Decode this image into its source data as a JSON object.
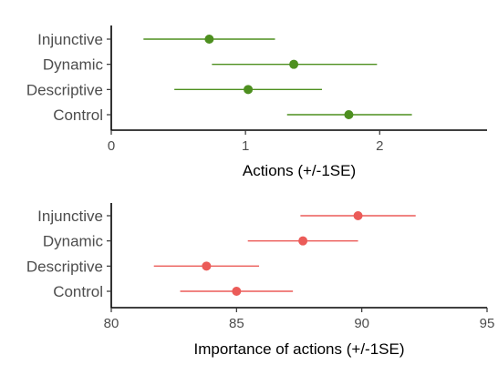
{
  "chart_data": [
    {
      "type": "scatter",
      "subtype": "point-range",
      "title": "",
      "xlabel": "Actions (+/-1SE)",
      "ylabel": "",
      "xlim": [
        0,
        2.8
      ],
      "xticks": [
        0,
        1,
        2
      ],
      "xtick_labels": [
        "0",
        "1",
        "2"
      ],
      "color": "#4d8f1f",
      "categories": [
        "Injunctive",
        "Dynamic",
        "Descriptive",
        "Control"
      ],
      "points": [
        {
          "label": "Injunctive",
          "value": 0.73,
          "low": 0.24,
          "high": 1.22
        },
        {
          "label": "Dynamic",
          "value": 1.36,
          "low": 0.75,
          "high": 1.98
        },
        {
          "label": "Descriptive",
          "value": 1.02,
          "low": 0.47,
          "high": 1.57
        },
        {
          "label": "Control",
          "value": 1.77,
          "low": 1.31,
          "high": 2.24
        }
      ],
      "grid": false
    },
    {
      "type": "scatter",
      "subtype": "point-range",
      "title": "",
      "xlabel": "Importance of actions (+/-1SE)",
      "ylabel": "",
      "xlim": [
        80,
        95
      ],
      "xticks": [
        80,
        85,
        90,
        95
      ],
      "xtick_labels": [
        "80",
        "85",
        "90",
        "95"
      ],
      "color": "#eb5b58",
      "categories": [
        "Injunctive",
        "Dynamic",
        "Descriptive",
        "Control"
      ],
      "points": [
        {
          "label": "Injunctive",
          "value": 89.85,
          "low": 87.55,
          "high": 92.15
        },
        {
          "label": "Dynamic",
          "value": 87.65,
          "low": 85.45,
          "high": 89.85
        },
        {
          "label": "Descriptive",
          "value": 83.8,
          "low": 81.7,
          "high": 85.9
        },
        {
          "label": "Control",
          "value": 85.0,
          "low": 82.75,
          "high": 87.25
        }
      ],
      "grid": false
    }
  ]
}
